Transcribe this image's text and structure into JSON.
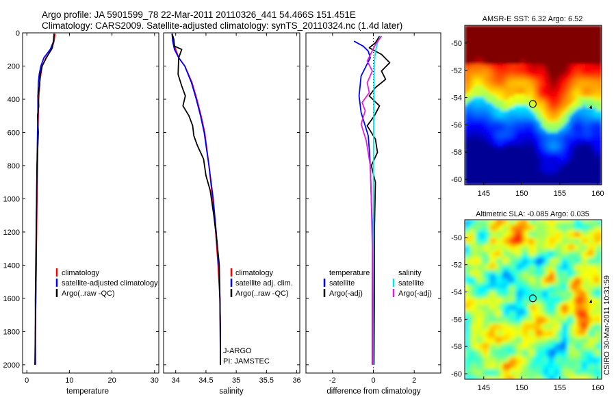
{
  "header": {
    "line1": "Argo profile: JA 5901599_78 22-Mar-2011 20110326_441 54.466S 151.451E",
    "line2": "Climatology: CARS2009. Satellite-adjusted climatology: synTS_20110324.nc (1.4d later)"
  },
  "colors": {
    "climatology": "#ff0000",
    "satellite": "#0000ff",
    "argo": "#000000",
    "satellite_diff": "#00e5ee",
    "argo_diff": "#e020e0"
  },
  "chart_data": [
    {
      "type": "line",
      "id": "temperature",
      "xlabel": "temperature",
      "ylabel": "",
      "xlim": [
        -1,
        31
      ],
      "ylim": [
        2050,
        0
      ],
      "xticks": [
        0,
        10,
        20,
        30
      ],
      "yticks": [
        0,
        200,
        400,
        600,
        800,
        1000,
        1200,
        1400,
        1600,
        1800,
        2000
      ],
      "legend": [
        "climatology",
        "satellite-adjusted climatology",
        "Argo(..raw -QC)"
      ],
      "series": [
        {
          "name": "climatology",
          "color": "red",
          "x": [
            6.6,
            6.4,
            5.8,
            4.5,
            3.6,
            3.3,
            3.0,
            2.9,
            2.8,
            2.7,
            2.6,
            2.5,
            2.4,
            2.3,
            2.2,
            2.1,
            2.0,
            2.0
          ],
          "y": [
            5,
            50,
            100,
            150,
            200,
            250,
            300,
            350,
            400,
            500,
            600,
            800,
            1000,
            1200,
            1400,
            1600,
            1800,
            2000
          ]
        },
        {
          "name": "satellite-adjusted climatology",
          "color": "blue",
          "x": [
            6.4,
            6.3,
            5.5,
            4.0,
            3.3,
            2.9,
            2.7,
            2.6,
            2.6,
            2.5,
            2.4,
            2.3,
            2.2,
            2.2,
            2.1,
            2.0,
            2.0
          ],
          "y": [
            5,
            50,
            100,
            150,
            200,
            250,
            300,
            400,
            500,
            600,
            800,
            1000,
            1200,
            1400,
            1600,
            1800,
            2000
          ]
        },
        {
          "name": "Argo(..raw -QC)",
          "color": "black",
          "x": [
            6.4,
            6.3,
            6.0,
            4.6,
            3.6,
            3.1,
            3.0,
            2.6,
            2.8,
            2.5,
            2.7,
            2.4,
            2.3,
            2.2,
            2.1,
            2.0,
            2.0,
            1.9
          ],
          "y": [
            5,
            40,
            90,
            150,
            200,
            260,
            320,
            380,
            440,
            500,
            600,
            800,
            1000,
            1200,
            1400,
            1600,
            1800,
            2000
          ]
        }
      ]
    },
    {
      "type": "line",
      "id": "salinity",
      "xlabel": "salinity",
      "ylabel": "",
      "xlim": [
        33.8,
        36.05
      ],
      "ylim": [
        2050,
        0
      ],
      "xticks": [
        34,
        34.5,
        35,
        35.5,
        36
      ],
      "xticklabels": [
        "34",
        "34.5",
        "35",
        "35.5",
        "36"
      ],
      "legend": [
        "climatology",
        "satellite adj. clim.",
        "Argo(..raw -QC)"
      ],
      "annotations": [
        "J-ARGO",
        "PI: JAMSTEC"
      ],
      "series": [
        {
          "name": "climatology",
          "color": "red",
          "x": [
            33.94,
            33.96,
            34.0,
            34.05,
            34.15,
            34.27,
            34.35,
            34.42,
            34.48,
            34.55,
            34.61,
            34.66,
            34.7,
            34.73,
            34.74,
            34.74
          ],
          "y": [
            5,
            50,
            100,
            150,
            200,
            300,
            400,
            500,
            600,
            800,
            1000,
            1200,
            1400,
            1600,
            1800,
            2000
          ]
        },
        {
          "name": "satellite adj. clim.",
          "color": "blue",
          "x": [
            33.94,
            33.95,
            33.98,
            34.05,
            34.15,
            34.26,
            34.34,
            34.41,
            34.47,
            34.55,
            34.62,
            34.67,
            34.71,
            34.73,
            34.74,
            34.74
          ],
          "y": [
            5,
            50,
            100,
            150,
            200,
            300,
            400,
            500,
            600,
            800,
            1000,
            1200,
            1400,
            1600,
            1800,
            2000
          ]
        },
        {
          "name": "Argo(..raw -QC)",
          "color": "black",
          "x": [
            33.94,
            33.97,
            33.98,
            34.1,
            34.05,
            34.04,
            34.1,
            34.16,
            34.12,
            34.22,
            34.28,
            34.3,
            34.36,
            34.46,
            34.5,
            34.57,
            34.63,
            34.68,
            34.72,
            34.73,
            34.74
          ],
          "y": [
            5,
            40,
            80,
            100,
            150,
            250,
            320,
            380,
            440,
            500,
            560,
            620,
            680,
            760,
            860,
            950,
            1100,
            1250,
            1400,
            1600,
            2000
          ]
        }
      ]
    },
    {
      "type": "line",
      "id": "difference",
      "xlabel": "difference from climatology",
      "ylabel": "",
      "xlim": [
        -3.3,
        3.3
      ],
      "ylim": [
        2050,
        0
      ],
      "xticks": [
        -2,
        0,
        2
      ],
      "legend_temperature_title": "temperature",
      "legend_salinity_title": "salinity",
      "legend_temperature": [
        "satellite",
        "Argo(-adj)"
      ],
      "legend_salinity": [
        "satellite",
        "Argo(-adj)"
      ],
      "series": [
        {
          "name": "temperature satellite",
          "color": "blue",
          "x": [
            -0.95,
            -0.5,
            -0.25,
            -0.15,
            -0.6,
            -0.7,
            -0.6,
            -0.4,
            -0.25,
            -0.2,
            -0.15,
            -0.1,
            -0.05,
            -0.05,
            -0.05,
            -0.05,
            -0.05
          ],
          "y": [
            50,
            80,
            110,
            150,
            260,
            380,
            480,
            560,
            620,
            700,
            800,
            1000,
            1200,
            1400,
            1600,
            1800,
            2000
          ]
        },
        {
          "name": "temperature Argo(-adj)",
          "color": "black",
          "x": [
            0.3,
            0.1,
            -0.2,
            0.4,
            0.8,
            0.4,
            0.6,
            0.1,
            -0.2,
            0.3,
            0.05,
            -0.3,
            0.1,
            0.2,
            -0.1,
            0.1,
            0.05,
            0.05,
            0.03
          ],
          "y": [
            20,
            60,
            90,
            130,
            180,
            230,
            280,
            330,
            380,
            440,
            500,
            560,
            640,
            720,
            800,
            900,
            1200,
            1600,
            2000
          ]
        },
        {
          "name": "salinity satellite",
          "color": "#00e5ee",
          "x": [
            0.35,
            0.2,
            0.1,
            0.05,
            0.03,
            0.02,
            0.01,
            0.0,
            0.0,
            0.0
          ],
          "y": [
            20,
            60,
            110,
            180,
            300,
            500,
            700,
            1000,
            1500,
            2000
          ]
        },
        {
          "name": "salinity Argo(-adj)",
          "color": "#e020e0",
          "x": [
            0.4,
            0.1,
            -0.1,
            -0.3,
            -0.05,
            -0.3,
            -0.2,
            -0.55,
            -0.4,
            -0.6,
            -0.35,
            -0.15,
            -0.1,
            -0.05,
            -0.02,
            -0.02
          ],
          "y": [
            20,
            70,
            120,
            170,
            230,
            300,
            360,
            420,
            470,
            550,
            650,
            800,
            1000,
            1300,
            1600,
            2000
          ]
        }
      ]
    },
    {
      "type": "heatmap",
      "id": "sst-map",
      "title": "AMSR-E SST: 6.32 Argo: 6.52",
      "xlim": [
        142.5,
        160.5
      ],
      "ylim": [
        -60.4,
        -48.7
      ],
      "xticks": [
        145,
        150,
        155,
        160
      ],
      "yticks": [
        -50,
        -52,
        -54,
        -56,
        -58,
        -60
      ],
      "marker": {
        "lon": 151.451,
        "lat": -54.466
      }
    },
    {
      "type": "heatmap",
      "id": "sla-map",
      "title": "Altimetric SLA: -0.085 Argo: 0.035",
      "xlim": [
        142.5,
        160.5
      ],
      "ylim": [
        -60.4,
        -48.7
      ],
      "xticks": [
        145,
        150,
        155,
        160
      ],
      "yticks": [
        -50,
        -52,
        -54,
        -56,
        -58,
        -60
      ],
      "marker": {
        "lon": 151.451,
        "lat": -54.466
      }
    }
  ],
  "stamp": "CSIRO 30-Mar-2011 10:31:59"
}
